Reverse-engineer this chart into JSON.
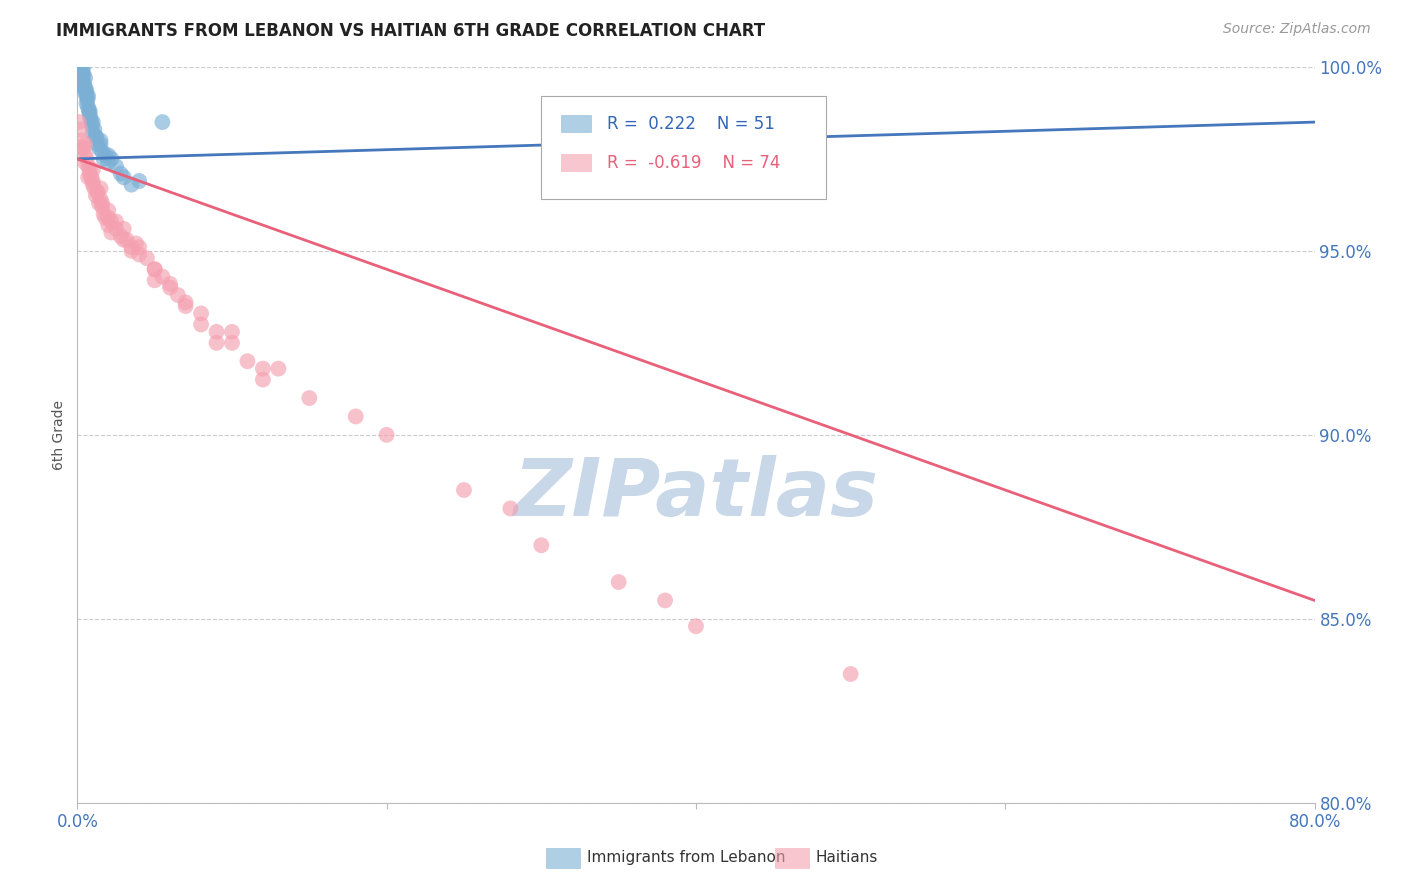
{
  "title": "IMMIGRANTS FROM LEBANON VS HAITIAN 6TH GRADE CORRELATION CHART",
  "source": "Source: ZipAtlas.com",
  "ylabel": "6th Grade",
  "xlim": [
    0.0,
    80.0
  ],
  "ylim": [
    80.0,
    100.0
  ],
  "yticks": [
    80.0,
    85.0,
    90.0,
    95.0,
    100.0
  ],
  "yticklabels": [
    "80.0%",
    "85.0%",
    "90.0%",
    "95.0%",
    "100.0%"
  ],
  "R_lebanon": 0.222,
  "N_lebanon": 51,
  "R_haitian": -0.619,
  "N_haitian": 74,
  "legend_items": [
    "Immigrants from Lebanon",
    "Haitians"
  ],
  "blue_color": "#7BAFD4",
  "pink_color": "#F4A0B0",
  "blue_line_color": "#4477BB",
  "pink_line_color": "#E8607A",
  "grid_color": "#CCCCCC",
  "background_color": "#FFFFFF",
  "watermark_color": "#C8D8E8",
  "lebanon_x": [
    0.1,
    0.15,
    0.2,
    0.2,
    0.25,
    0.3,
    0.3,
    0.35,
    0.4,
    0.4,
    0.45,
    0.5,
    0.5,
    0.55,
    0.6,
    0.6,
    0.65,
    0.7,
    0.75,
    0.8,
    0.85,
    0.9,
    0.95,
    1.0,
    1.0,
    1.1,
    1.2,
    1.3,
    1.4,
    1.5,
    1.6,
    1.7,
    1.8,
    2.0,
    2.2,
    2.5,
    2.8,
    3.0,
    3.5,
    4.0,
    0.2,
    0.3,
    0.4,
    0.5,
    0.6,
    0.7,
    2.0,
    5.5,
    1.5,
    1.2,
    0.8
  ],
  "lebanon_y": [
    100.0,
    100.0,
    100.0,
    99.8,
    100.0,
    99.9,
    99.7,
    99.8,
    99.6,
    100.0,
    99.5,
    99.7,
    99.3,
    99.4,
    99.2,
    99.0,
    99.1,
    98.9,
    98.8,
    98.7,
    98.6,
    98.5,
    98.4,
    98.5,
    98.2,
    98.3,
    98.1,
    97.9,
    97.8,
    98.0,
    97.7,
    97.5,
    97.6,
    97.4,
    97.5,
    97.3,
    97.1,
    97.0,
    96.8,
    96.9,
    99.6,
    99.5,
    99.8,
    99.4,
    99.3,
    99.2,
    97.6,
    98.5,
    97.9,
    98.1,
    98.8
  ],
  "haitian_x": [
    0.1,
    0.2,
    0.3,
    0.4,
    0.5,
    0.5,
    0.6,
    0.7,
    0.8,
    0.9,
    1.0,
    1.0,
    1.1,
    1.2,
    1.3,
    1.4,
    1.5,
    1.6,
    1.7,
    1.8,
    2.0,
    2.0,
    2.2,
    2.5,
    2.8,
    3.0,
    3.2,
    3.5,
    3.8,
    4.0,
    4.5,
    5.0,
    5.5,
    6.0,
    6.5,
    7.0,
    8.0,
    9.0,
    10.0,
    11.0,
    12.0,
    0.3,
    0.5,
    0.7,
    1.0,
    1.3,
    1.6,
    2.0,
    2.5,
    3.0,
    4.0,
    5.0,
    6.0,
    8.0,
    10.0,
    13.0,
    15.0,
    20.0,
    25.0,
    30.0,
    35.0,
    40.0,
    0.8,
    1.5,
    2.2,
    3.5,
    5.0,
    7.0,
    9.0,
    12.0,
    18.0,
    28.0,
    38.0,
    50.0
  ],
  "haitian_y": [
    98.5,
    98.3,
    98.0,
    97.8,
    97.6,
    97.9,
    97.5,
    97.3,
    97.1,
    97.0,
    97.2,
    96.8,
    96.7,
    96.5,
    96.6,
    96.3,
    96.4,
    96.2,
    96.0,
    95.9,
    96.1,
    95.7,
    95.5,
    95.8,
    95.4,
    95.6,
    95.3,
    95.0,
    95.2,
    95.1,
    94.8,
    94.5,
    94.3,
    94.0,
    93.8,
    93.5,
    93.0,
    92.5,
    92.8,
    92.0,
    91.5,
    97.8,
    97.4,
    97.0,
    96.9,
    96.6,
    96.3,
    95.9,
    95.6,
    95.3,
    94.9,
    94.5,
    94.1,
    93.3,
    92.5,
    91.8,
    91.0,
    90.0,
    88.5,
    87.0,
    86.0,
    84.8,
    97.2,
    96.7,
    95.8,
    95.1,
    94.2,
    93.6,
    92.8,
    91.8,
    90.5,
    88.0,
    85.5,
    83.5
  ]
}
